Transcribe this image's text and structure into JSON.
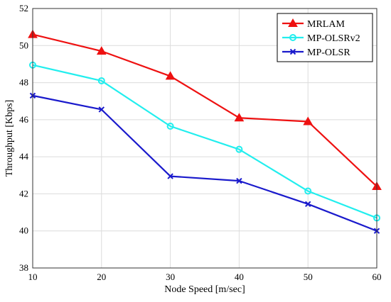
{
  "chart_data": {
    "type": "line",
    "title": "",
    "xlabel": "Node Speed [m/sec]",
    "ylabel": "Throughput [Kbps]",
    "x": [
      10,
      20,
      30,
      40,
      50,
      60
    ],
    "xlim": [
      10,
      60
    ],
    "ylim": [
      38,
      52
    ],
    "xticks": [
      10,
      20,
      30,
      40,
      50,
      60
    ],
    "yticks": [
      38,
      40,
      42,
      44,
      46,
      48,
      50,
      52
    ],
    "grid": true,
    "legend_position": "top-right",
    "series": [
      {
        "name": "MRLAM",
        "color": "#ee1111",
        "marker": "triangle",
        "values": [
          50.6,
          49.7,
          48.35,
          46.1,
          45.9,
          42.4
        ]
      },
      {
        "name": "MP-OLSRv2",
        "color": "#22eeee",
        "marker": "circle",
        "values": [
          48.95,
          48.1,
          45.65,
          44.4,
          42.15,
          40.7
        ]
      },
      {
        "name": "MP-OLSR",
        "color": "#1a1acc",
        "marker": "x",
        "values": [
          47.3,
          46.55,
          42.95,
          42.7,
          41.45,
          40.0
        ]
      }
    ]
  }
}
